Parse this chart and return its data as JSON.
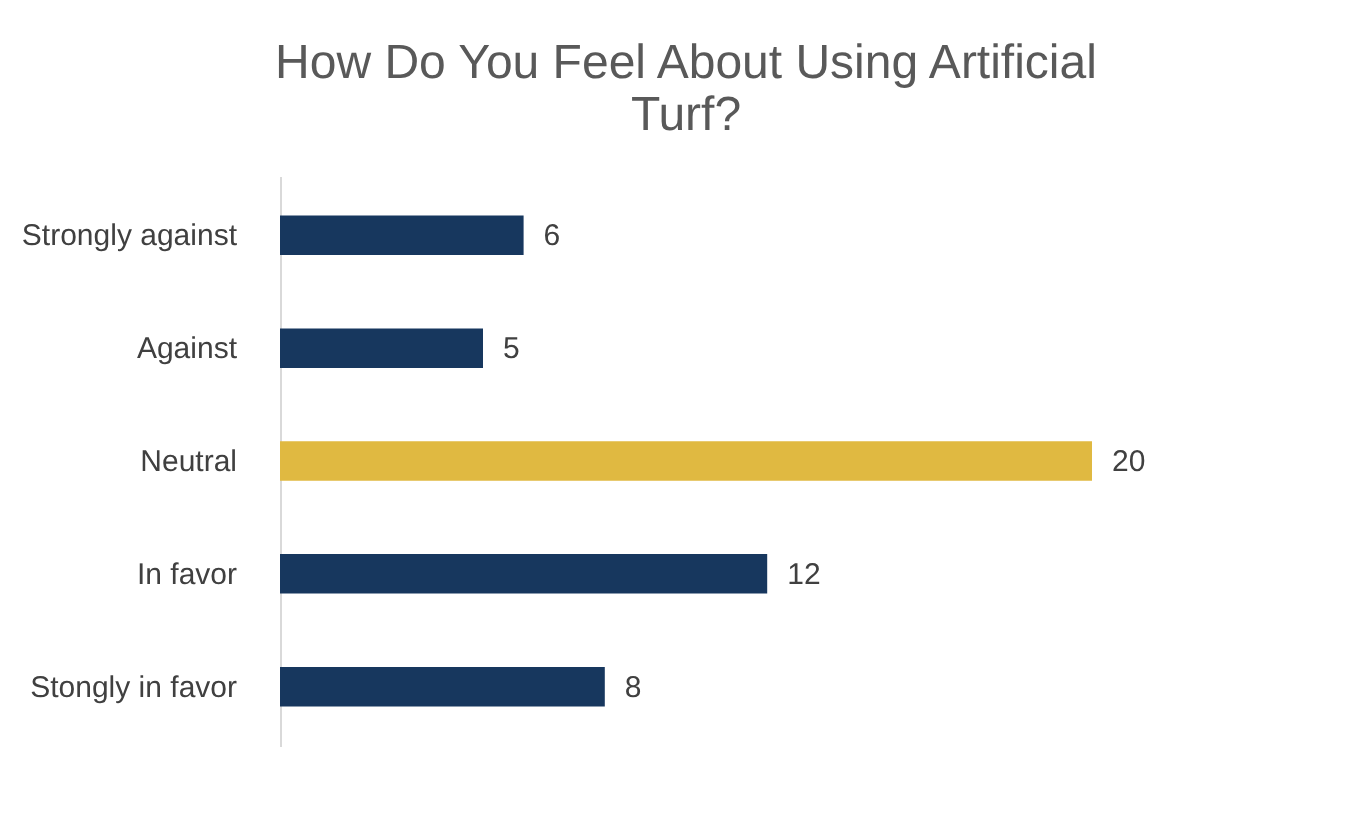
{
  "chart_data": {
    "type": "bar",
    "orientation": "horizontal",
    "title": "How Do You Feel About Using Artificial Turf?",
    "categories": [
      "Strongly against",
      "Against",
      "Neutral",
      "In favor",
      "Stongly in favor"
    ],
    "values": [
      6,
      5,
      20,
      12,
      8
    ],
    "colors": [
      "#17375e",
      "#17375e",
      "#e0b941",
      "#17375e",
      "#17375e"
    ],
    "tick_labels": "y",
    "data_labels": true
  }
}
